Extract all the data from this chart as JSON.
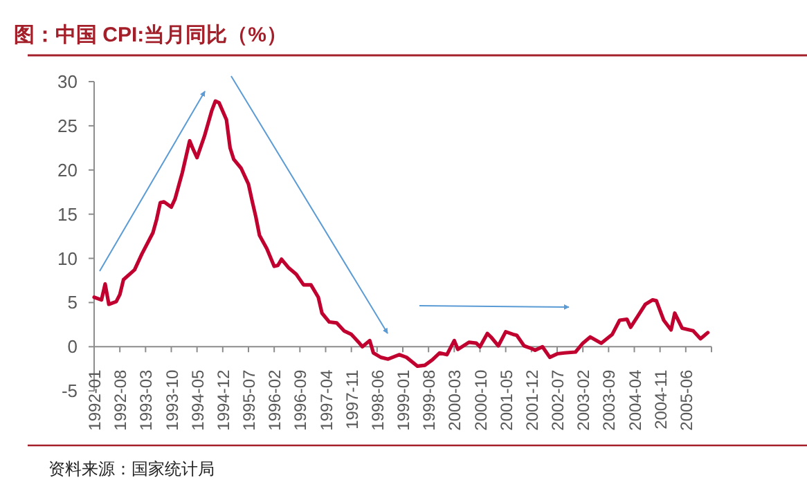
{
  "chart_data": {
    "type": "line",
    "title": "图：中国 CPI:当月同比（%）",
    "annotations": [
      "资料来源：国家统计局"
    ],
    "xlim": [
      "1992-01",
      "2006-01"
    ],
    "xticks": [
      "1992-01",
      "1992-08",
      "1993-03",
      "1993-10",
      "1994-05",
      "1994-12",
      "1995-07",
      "1996-02",
      "1996-09",
      "1997-04",
      "1997-11",
      "1998-06",
      "1999-01",
      "1999-08",
      "2000-03",
      "2000-10",
      "2001-05",
      "2001-12",
      "2002-07",
      "2003-02",
      "2003-09",
      "2004-04",
      "2004-11",
      "2005-06"
    ],
    "ylim": [
      -5,
      30
    ],
    "yticks": [
      -5,
      0,
      5,
      10,
      15,
      20,
      25,
      30
    ],
    "series": [
      {
        "color": "#c0002e",
        "x": [
          "1992-01",
          "1992-03",
          "1992-04",
          "1992-05",
          "1992-07",
          "1992-08",
          "1992-09",
          "1992-12",
          "1993-02",
          "1993-04",
          "1993-05",
          "1993-06",
          "1993-07",
          "1993-08",
          "1993-10",
          "1993-11",
          "1994-01",
          "1994-03",
          "1994-04",
          "1994-05",
          "1994-07",
          "1994-09",
          "1994-10",
          "1994-11",
          "1995-01",
          "1995-02",
          "1995-03",
          "1995-05",
          "1995-07",
          "1995-08",
          "1995-09",
          "1995-10",
          "1995-12",
          "1996-02",
          "1996-03",
          "1996-04",
          "1996-06",
          "1996-08",
          "1996-10",
          "1996-12",
          "1997-02",
          "1997-03",
          "1997-05",
          "1997-07",
          "1997-09",
          "1997-11",
          "1998-01",
          "1998-02",
          "1998-04",
          "1998-05",
          "1998-07",
          "1998-09",
          "1998-12",
          "1999-02",
          "1999-05",
          "1999-07",
          "1999-09",
          "1999-11",
          "2000-01",
          "2000-03",
          "2000-04",
          "2000-07",
          "2000-09",
          "2000-10",
          "2000-12",
          "2001-01",
          "2001-03",
          "2001-05",
          "2001-07",
          "2001-08",
          "2001-10",
          "2001-12",
          "2002-01",
          "2002-03",
          "2002-05",
          "2002-07",
          "2002-09",
          "2002-12",
          "2003-02",
          "2003-04",
          "2003-07",
          "2003-10",
          "2003-12",
          "2004-02",
          "2004-03",
          "2004-05",
          "2004-07",
          "2004-09",
          "2004-10",
          "2004-12",
          "2005-02",
          "2005-03",
          "2005-05",
          "2005-08",
          "2005-10",
          "2005-12"
        ],
        "values": [
          5.6,
          5.3,
          7.1,
          4.8,
          5.1,
          5.9,
          7.6,
          8.7,
          10.5,
          12.1,
          12.9,
          14.4,
          16.3,
          16.4,
          15.8,
          16.7,
          19.7,
          23.3,
          22.3,
          21.4,
          23.8,
          26.7,
          27.8,
          27.6,
          25.7,
          22.5,
          21.2,
          20.2,
          18.4,
          16.5,
          14.7,
          12.6,
          11.1,
          9.1,
          9.2,
          9.9,
          8.9,
          8.2,
          7.0,
          7.0,
          5.6,
          3.8,
          2.8,
          2.7,
          1.8,
          1.4,
          0.5,
          0.0,
          0.7,
          -0.7,
          -1.2,
          -1.4,
          -0.9,
          -1.2,
          -2.2,
          -2.1,
          -1.5,
          -0.7,
          -0.9,
          0.7,
          -0.3,
          0.5,
          0.4,
          0.0,
          1.5,
          1.1,
          0.1,
          1.7,
          1.4,
          1.3,
          0.1,
          -0.2,
          -0.4,
          0.0,
          -1.2,
          -0.8,
          -0.7,
          -0.6,
          0.4,
          1.1,
          0.4,
          1.4,
          3.0,
          3.1,
          2.2,
          3.5,
          4.8,
          5.3,
          5.2,
          3.0,
          1.9,
          3.8,
          2.1,
          1.8,
          0.9,
          1.6
        ]
      }
    ]
  }
}
